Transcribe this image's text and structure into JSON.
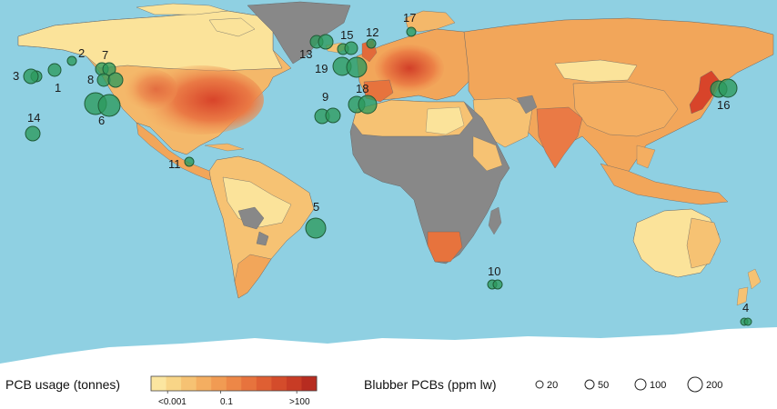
{
  "colors": {
    "ocean": "#8fd0e2",
    "land_low": "#fbe39a",
    "land_mid": "#f2a65a",
    "land_high": "#d8442a",
    "no_data": "#888888",
    "ice": "#ffffff",
    "marker_fill": "#2d9a5c",
    "marker_stroke": "#1f5b37",
    "border": "#666666"
  },
  "legend": {
    "usage_title": "PCB usage (tonnes)",
    "usage_ticks": [
      "<0.001",
      "0.1",
      ">100"
    ],
    "usage_ramp": [
      "#fbe6a0",
      "#f8d587",
      "#f6c273",
      "#f4ae61",
      "#f19b53",
      "#ed8747",
      "#e7733d",
      "#df5f33",
      "#d44c2b",
      "#c83c25",
      "#b72c20"
    ],
    "blubber_title": "Blubber PCBs (ppm lw)",
    "blubber_sizes": [
      {
        "label": "20",
        "value": 20
      },
      {
        "label": "50",
        "value": 50
      },
      {
        "label": "100",
        "value": 100
      },
      {
        "label": "200",
        "value": 200
      }
    ]
  },
  "sites": [
    {
      "id": "1",
      "label": "1"
    },
    {
      "id": "2",
      "label": "2"
    },
    {
      "id": "3",
      "label": "3"
    },
    {
      "id": "4",
      "label": "4"
    },
    {
      "id": "5",
      "label": "5"
    },
    {
      "id": "6",
      "label": "6"
    },
    {
      "id": "7",
      "label": "7"
    },
    {
      "id": "8",
      "label": "8"
    },
    {
      "id": "9",
      "label": "9"
    },
    {
      "id": "10",
      "label": "10"
    },
    {
      "id": "11",
      "label": "11"
    },
    {
      "id": "12",
      "label": "12"
    },
    {
      "id": "13",
      "label": "13"
    },
    {
      "id": "14",
      "label": "14"
    },
    {
      "id": "15",
      "label": "15"
    },
    {
      "id": "16",
      "label": "16"
    },
    {
      "id": "17",
      "label": "17"
    },
    {
      "id": "18",
      "label": "18"
    },
    {
      "id": "19",
      "label": "19"
    }
  ]
}
